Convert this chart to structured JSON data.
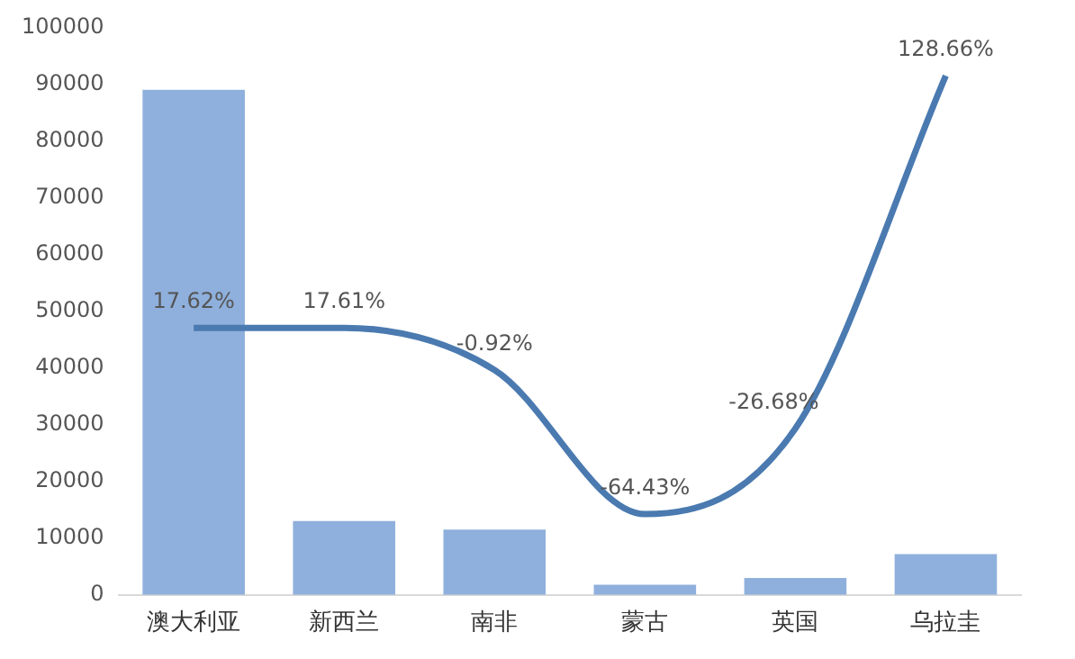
{
  "chart_data": {
    "type": "bar",
    "categories": [
      "澳大利亚",
      "新西兰",
      "南非",
      "蒙古",
      "英国",
      "乌拉圭"
    ],
    "ylim": [
      0,
      100000
    ],
    "yticks": [
      0,
      10000,
      20000,
      30000,
      40000,
      50000,
      60000,
      70000,
      80000,
      90000,
      100000
    ],
    "grid": false,
    "legend": false,
    "series": [
      {
        "color": "#8fb0dc",
        "values": [
          89000,
          13000,
          11500,
          1800,
          3000,
          7200
        ]
      },
      {
        "type": "line",
        "axis": "y2",
        "color": "#4a7ab0",
        "marker": "none",
        "values": [
          17.62,
          17.61,
          -0.92,
          -64.43,
          -26.68,
          128.66
        ],
        "value_labels": [
          "17.62%",
          "17.61%",
          "-0.92%",
          "-64.43%",
          "-26.68%",
          "128.66%"
        ]
      }
    ]
  }
}
